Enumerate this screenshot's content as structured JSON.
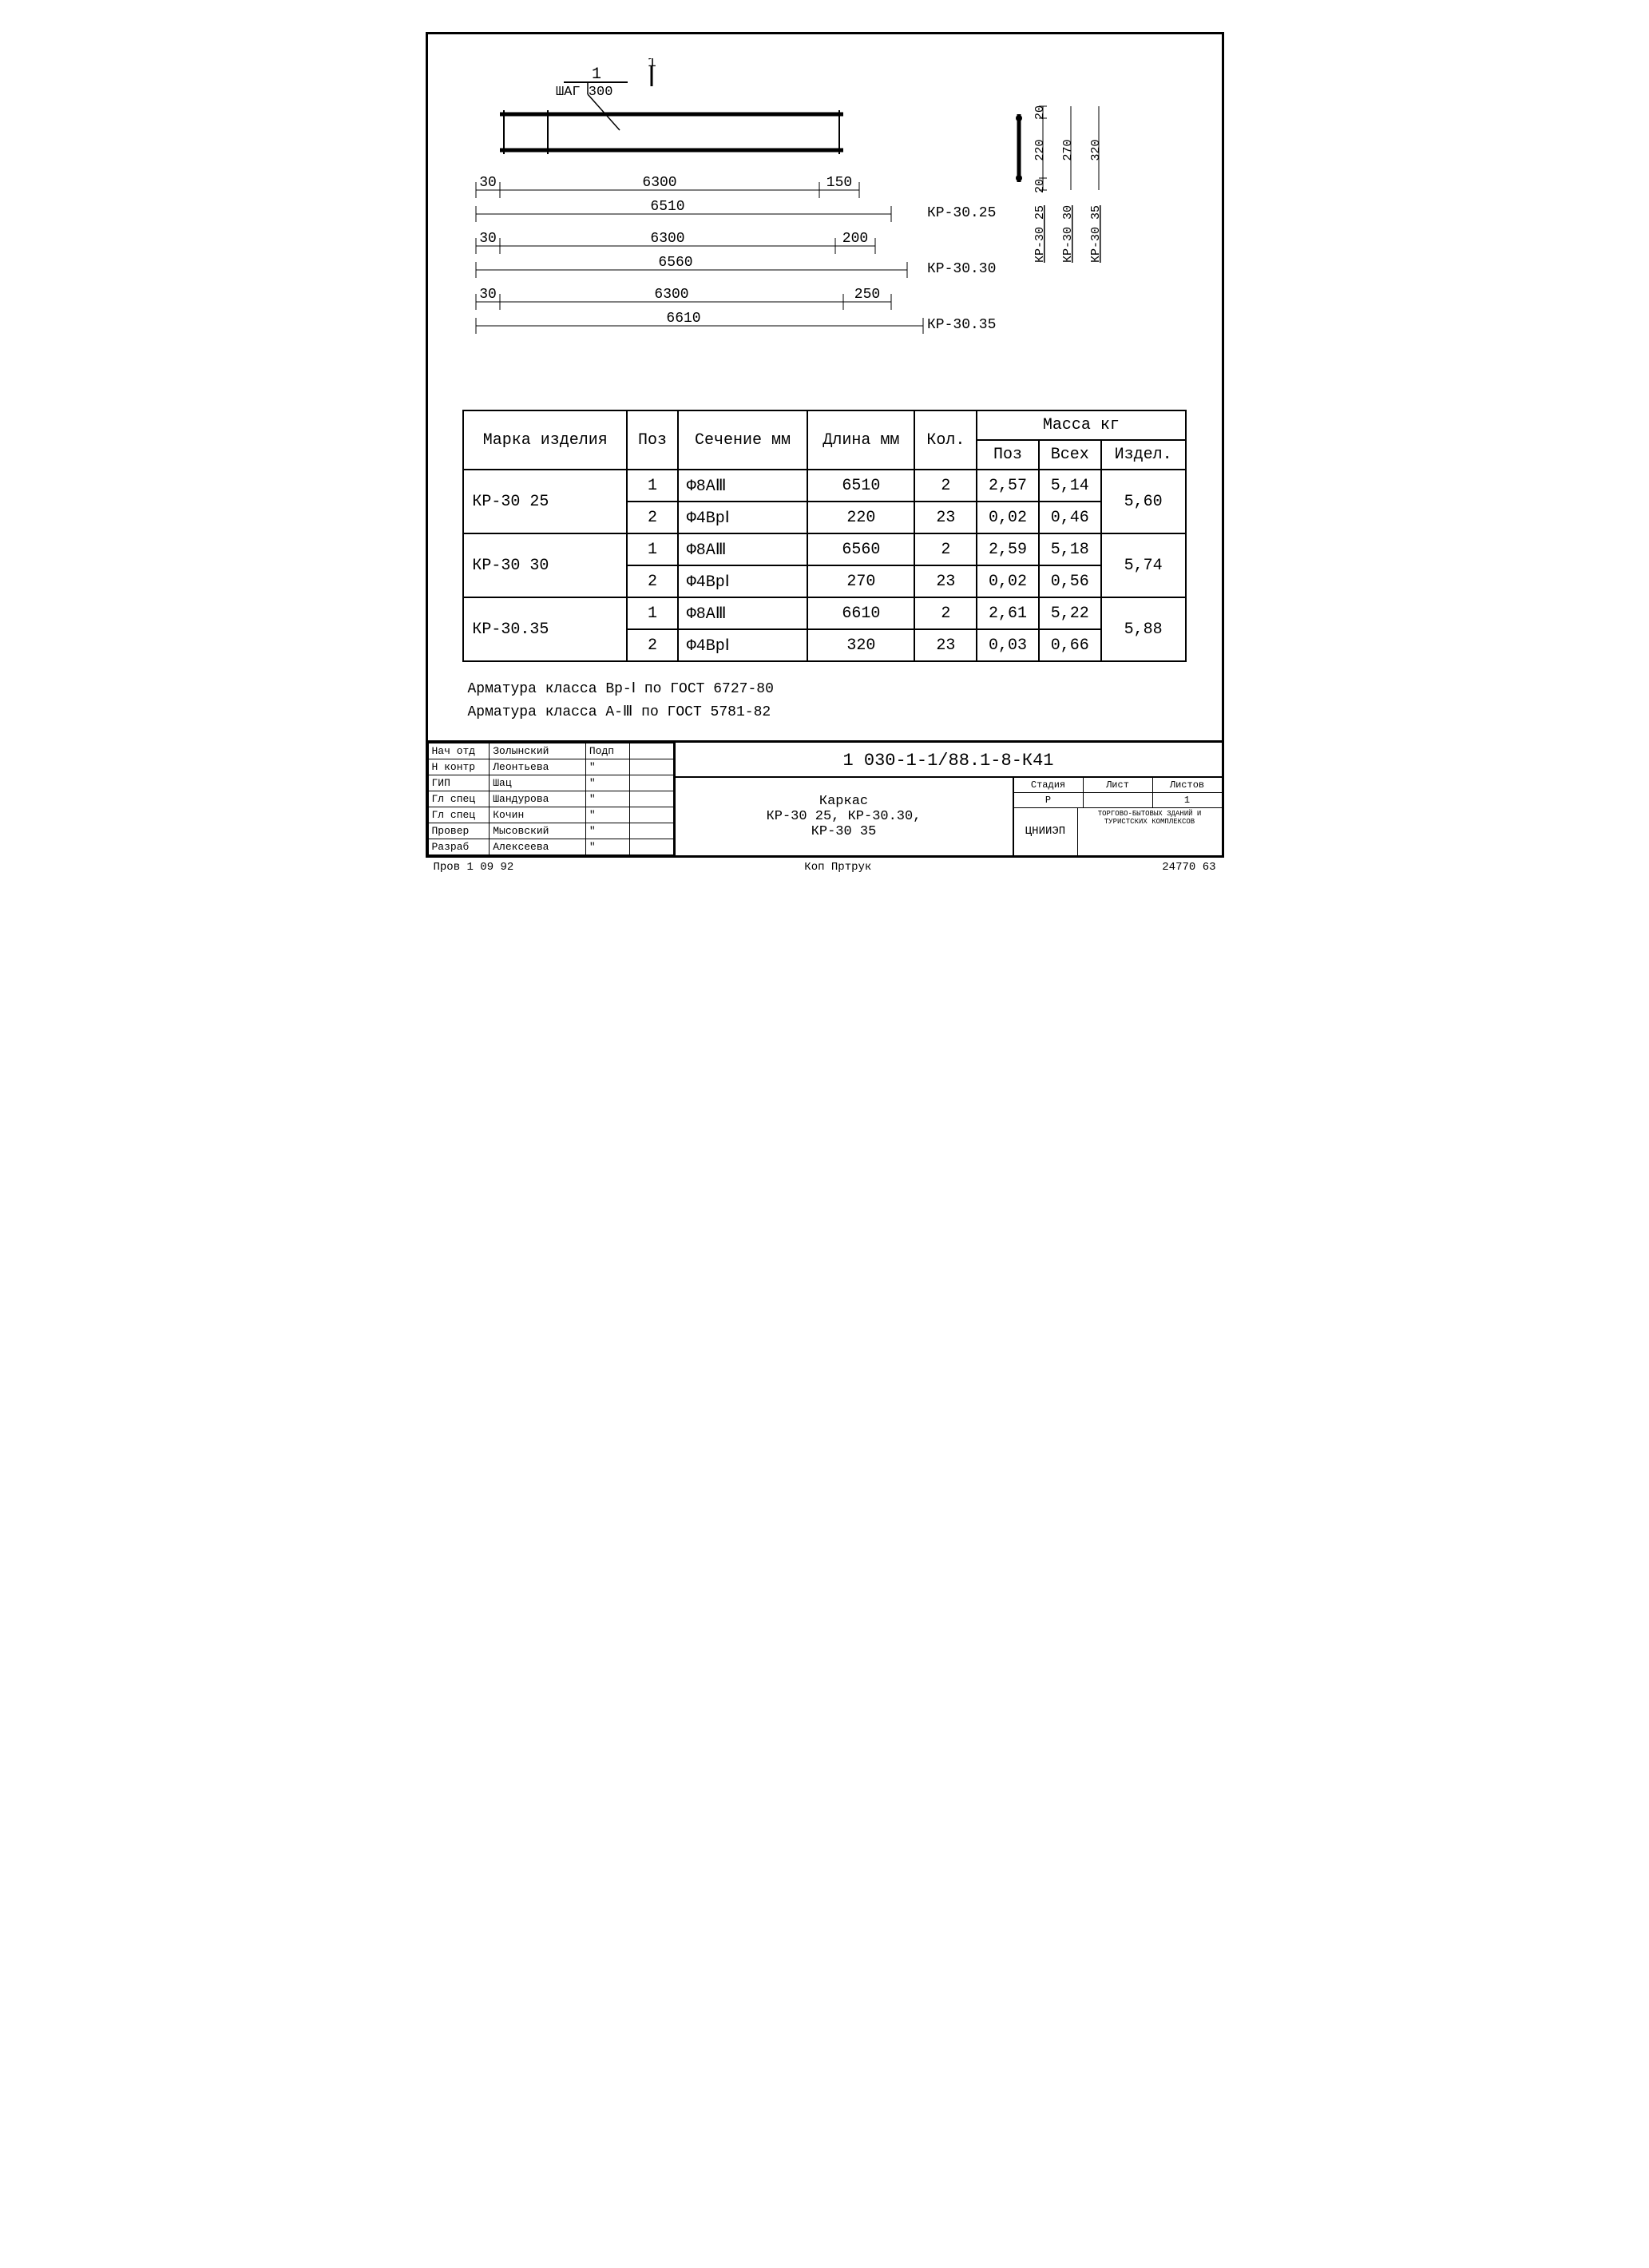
{
  "diagram": {
    "callout_label": "1",
    "callout_step": "ШАГ 300",
    "main_view": {
      "rows": [
        {
          "left": "30",
          "mid": "6300",
          "right": "150",
          "total": "6510",
          "mark": "КР-30.25"
        },
        {
          "left": "30",
          "mid": "6300",
          "right": "200",
          "total": "6560",
          "mark": "КР-30.30"
        },
        {
          "left": "30",
          "mid": "6300",
          "right": "250",
          "total": "6610",
          "mark": "КР-30.35"
        }
      ]
    },
    "section_view": {
      "top_dim": "20",
      "bottom_dim": "20",
      "variants": [
        {
          "mark": "КР-30 25",
          "inner": "220"
        },
        {
          "mark": "КР-30 30",
          "inner": "270",
          "total": ""
        },
        {
          "mark": "КР-30 35",
          "inner": "320",
          "total": ""
        }
      ]
    },
    "colors": {
      "line": "#000000",
      "rebar": "#000000",
      "bg": "#ffffff"
    },
    "line_widths": {
      "thin": 1,
      "thick": 4,
      "medium": 2
    }
  },
  "spec_table": {
    "headers": {
      "mark": "Марка изделия",
      "pos": "Поз",
      "section": "Сечение мм",
      "length": "Длина мм",
      "qty": "Кол.",
      "mass_group": "Масса кг",
      "mass_pos": "Поз",
      "mass_all": "Всех",
      "mass_item": "Издел."
    },
    "groups": [
      {
        "mark": "КР-30 25",
        "mass_item": "5,60",
        "rows": [
          {
            "pos": "1",
            "section": "Ф8АⅢ",
            "length": "6510",
            "qty": "2",
            "mpos": "2,57",
            "mall": "5,14"
          },
          {
            "pos": "2",
            "section": "Ф4ВрⅠ",
            "length": "220",
            "qty": "23",
            "mpos": "0,02",
            "mall": "0,46"
          }
        ]
      },
      {
        "mark": "КР-30 30",
        "mass_item": "5,74",
        "rows": [
          {
            "pos": "1",
            "section": "Ф8АⅢ",
            "length": "6560",
            "qty": "2",
            "mpos": "2,59",
            "mall": "5,18"
          },
          {
            "pos": "2",
            "section": "Ф4ВрⅠ",
            "length": "270",
            "qty": "23",
            "mpos": "0,02",
            "mall": "0,56"
          }
        ]
      },
      {
        "mark": "КР-30.35",
        "mass_item": "5,88",
        "rows": [
          {
            "pos": "1",
            "section": "Ф8АⅢ",
            "length": "6610",
            "qty": "2",
            "mpos": "2,61",
            "mall": "5,22"
          },
          {
            "pos": "2",
            "section": "Ф4ВрⅠ",
            "length": "320",
            "qty": "23",
            "mpos": "0,03",
            "mall": "0,66"
          }
        ]
      }
    ]
  },
  "notes": {
    "line1": "Арматура класса Вр-Ⅰ по ГОСТ 6727-80",
    "line2": "Арматура класса А-Ⅲ по ГОСТ 5781-82"
  },
  "title_block": {
    "left_rows": [
      {
        "role": "Нач отд",
        "name": "Золынский",
        "sig": "Подп",
        "date": ""
      },
      {
        "role": "Н контр",
        "name": "Леонтьева",
        "sig": "\"",
        "date": ""
      },
      {
        "role": "ГИП",
        "name": "Шац",
        "sig": "\"",
        "date": ""
      },
      {
        "role": "Гл спец",
        "name": "Шандурова",
        "sig": "\"",
        "date": ""
      },
      {
        "role": "Гл спец",
        "name": "Кочин",
        "sig": "\"",
        "date": ""
      },
      {
        "role": "Провер",
        "name": "Мысовский",
        "sig": "\"",
        "date": ""
      },
      {
        "role": "Разраб",
        "name": "Алексеева",
        "sig": "\"",
        "date": ""
      }
    ],
    "doc_number": "1 030-1-1/88.1-8-К41",
    "doc_title_l1": "Каркас",
    "doc_title_l2": "КР-30 25, КР-30.30,",
    "doc_title_l3": "КР-30 35",
    "stage_h": "Стадия",
    "sheet_h": "Лист",
    "sheets_h": "Листов",
    "stage": "Р",
    "sheet": "",
    "sheets": "1",
    "org": "ЦНИИЭП",
    "org_desc": "ТОРГОВО-БЫТОВЫХ ЗДАНИЙ И ТУРИСТСКИХ КОМПЛЕКСОВ"
  },
  "footer": {
    "left": "Пров   1 09 92",
    "mid": "Коп Пртрук",
    "right": "24770   63"
  }
}
